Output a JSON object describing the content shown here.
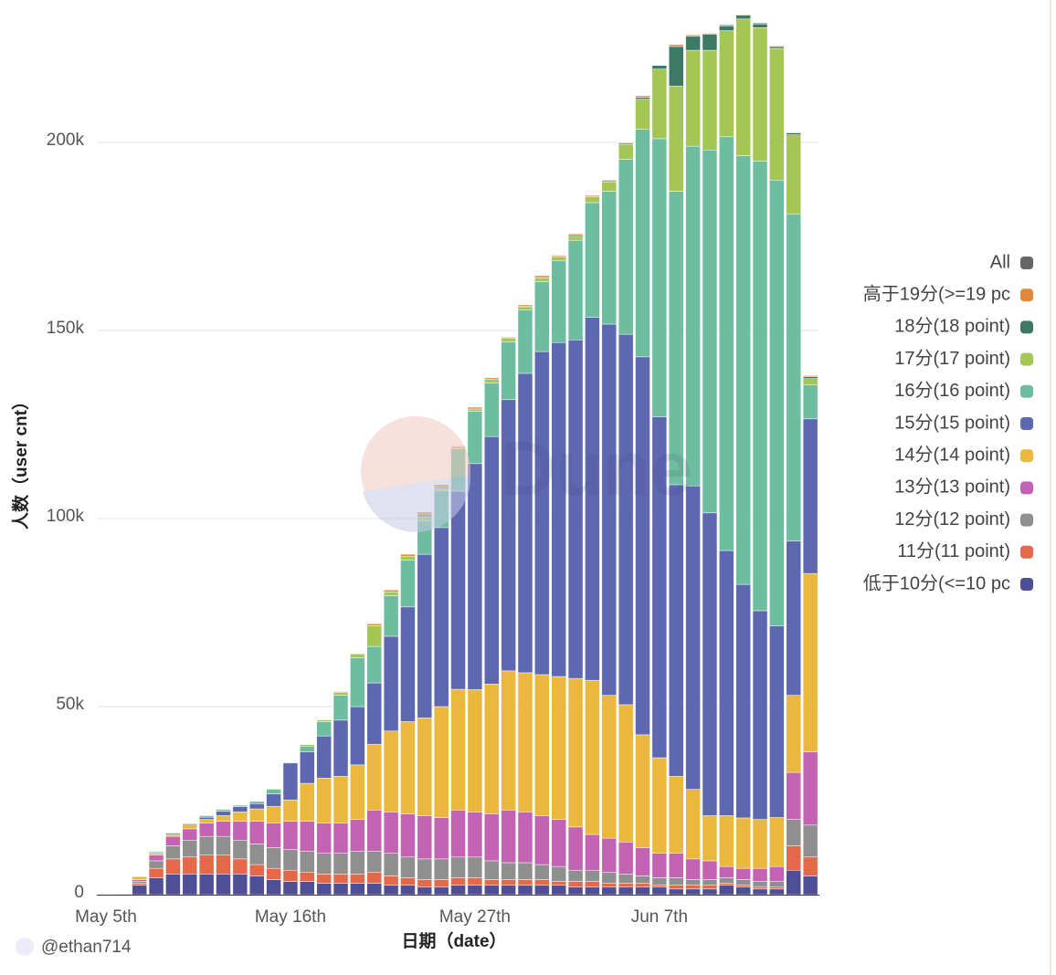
{
  "chart_data": {
    "type": "stacked_bar",
    "watermark": "Dune",
    "credit": "@ethan714",
    "xlabel": "日期（date）",
    "ylabel": "人数（user cnt）",
    "categories": [
      "May 5th",
      null,
      null,
      null,
      null,
      null,
      null,
      null,
      null,
      null,
      null,
      "May 16th",
      null,
      null,
      null,
      null,
      null,
      null,
      null,
      null,
      null,
      null,
      "May 27th",
      null,
      null,
      null,
      null,
      null,
      null,
      null,
      null,
      null,
      null,
      "Jun 7th",
      null,
      null,
      null,
      null,
      null,
      null,
      null,
      null,
      null
    ],
    "ylim": [
      0,
      235000
    ],
    "yticks": [
      {
        "value": 0,
        "label": "0"
      },
      {
        "value": 50000,
        "label": "50k"
      },
      {
        "value": 100000,
        "label": "100k"
      },
      {
        "value": 150000,
        "label": "150k"
      },
      {
        "value": 200000,
        "label": "200k"
      }
    ],
    "grid": true,
    "legend": "right",
    "series": [
      {
        "name": "低于10分(<=10 pc",
        "color": "#4e4f97",
        "values": [
          100,
          150,
          2500,
          4500,
          5500,
          5500,
          5500,
          5500,
          5500,
          5000,
          4000,
          3500,
          3500,
          3000,
          3000,
          3000,
          3000,
          2500,
          2500,
          2000,
          2000,
          2500,
          2500,
          2500,
          2500,
          2500,
          2500,
          2500,
          2000,
          2000,
          2000,
          2000,
          2000,
          2000,
          1500,
          1500,
          1500,
          2500,
          2000,
          1500,
          1500,
          6500,
          5000
        ]
      },
      {
        "name": "11分(11 point)",
        "color": "#e4694a",
        "values": [
          50,
          50,
          500,
          2500,
          4000,
          4500,
          5000,
          5000,
          4000,
          3000,
          3000,
          3000,
          2500,
          2500,
          2500,
          2500,
          3000,
          2500,
          2000,
          2000,
          2000,
          2000,
          2000,
          1500,
          1500,
          1500,
          1500,
          1000,
          1500,
          1500,
          1000,
          1000,
          1000,
          500,
          1000,
          1000,
          1000,
          500,
          500,
          500,
          500,
          6500,
          5000
        ]
      },
      {
        "name": "12分(12 point)",
        "color": "#8f8f8f",
        "values": [
          50,
          50,
          500,
          2000,
          3500,
          4500,
          5000,
          5000,
          5000,
          5500,
          5500,
          5500,
          5500,
          5500,
          5500,
          6000,
          5500,
          6000,
          5500,
          5500,
          5500,
          5500,
          5500,
          5000,
          4500,
          4500,
          4000,
          4000,
          3000,
          3000,
          3000,
          2500,
          2000,
          2000,
          2000,
          1500,
          1500,
          1500,
          1500,
          1500,
          1500,
          7000,
          8500
        ]
      },
      {
        "name": "13分(13 point)",
        "color": "#c463b4",
        "values": [
          50,
          50,
          500,
          1500,
          2500,
          3000,
          3500,
          4000,
          5000,
          6000,
          6500,
          7500,
          8000,
          8000,
          8000,
          8500,
          11000,
          11000,
          11500,
          11500,
          11000,
          12500,
          12000,
          12500,
          14000,
          13500,
          13000,
          12500,
          11500,
          9500,
          9000,
          8500,
          7500,
          6500,
          6500,
          5500,
          5000,
          3000,
          3000,
          3500,
          4000,
          12500,
          19500
        ]
      },
      {
        "name": "14分(14 point)",
        "color": "#e9b83d",
        "values": [
          50,
          50,
          800,
          500,
          500,
          1000,
          1000,
          1500,
          2500,
          3300,
          4500,
          5700,
          10100,
          12000,
          12500,
          14500,
          17500,
          21500,
          24500,
          26000,
          29500,
          32100,
          32500,
          34500,
          37000,
          37000,
          37500,
          38000,
          39500,
          41000,
          38000,
          36500,
          30000,
          25400,
          20500,
          18500,
          12000,
          13500,
          13400,
          13000,
          13000,
          20500,
          47400
        ]
      },
      {
        "name": "15分(15 point)",
        "color": "#5e68b1",
        "values": [
          0,
          0,
          100,
          200,
          300,
          300,
          600,
          1200,
          1400,
          1400,
          3300,
          9800,
          8400,
          11200,
          14900,
          15500,
          16300,
          25200,
          30500,
          43500,
          47600,
          52700,
          60100,
          65800,
          72100,
          79600,
          85900,
          88800,
          90000,
          96500,
          98700,
          98500,
          100500,
          90600,
          77500,
          80700,
          80500,
          70500,
          62100,
          55500,
          51000,
          41000,
          41100
        ]
      },
      {
        "name": "16分(16 point)",
        "color": "#6dbda0",
        "values": [
          0,
          0,
          100,
          300,
          200,
          200,
          400,
          500,
          400,
          600,
          1200,
          200,
          1500,
          3800,
          6600,
          13000,
          9700,
          10800,
          12500,
          9000,
          9900,
          11200,
          13900,
          14200,
          15400,
          16900,
          18600,
          21700,
          26500,
          30500,
          35300,
          46500,
          60500,
          74000,
          78000,
          90300,
          96500,
          110000,
          114000,
          119500,
          118500,
          87000,
          9000
        ]
      },
      {
        "name": "17分(17 point)",
        "color": "#a3c654",
        "values": [
          0,
          0,
          0,
          0,
          0,
          0,
          0,
          100,
          100,
          100,
          200,
          100,
          400,
          500,
          800,
          1000,
          5500,
          1000,
          1000,
          1000,
          500,
          500,
          500,
          700,
          1000,
          800,
          1000,
          1000,
          1000,
          1500,
          2500,
          4000,
          8000,
          18500,
          28000,
          25500,
          26500,
          28200,
          36300,
          35500,
          35000,
          21000,
          1700
        ]
      },
      {
        "name": "18分(18 point)",
        "color": "#3c7a66",
        "values": [
          0,
          0,
          0,
          0,
          0,
          0,
          0,
          0,
          0,
          0,
          0,
          0,
          0,
          0,
          0,
          0,
          0,
          0,
          0,
          500,
          300,
          200,
          300,
          300,
          100,
          200,
          300,
          200,
          300,
          200,
          300,
          300,
          500,
          1000,
          10500,
          3700,
          4300,
          1300,
          1000,
          1000,
          500,
          500,
          500
        ]
      },
      {
        "name": "高于19分(>=19 pc",
        "color": "#e0893a",
        "values": [
          0,
          0,
          0,
          0,
          0,
          0,
          0,
          0,
          0,
          0,
          0,
          0,
          0,
          100,
          200,
          0,
          500,
          500,
          500,
          700,
          700,
          200,
          300,
          400,
          200,
          300,
          300,
          300,
          400,
          300,
          200,
          200,
          400,
          100,
          500,
          400,
          200,
          300,
          200,
          300,
          200,
          200,
          300
        ]
      },
      {
        "name": "All",
        "color": "#666666",
        "values": [
          null,
          null,
          null,
          null,
          null,
          null,
          null,
          null,
          null,
          null,
          null,
          null,
          null,
          null,
          null,
          null,
          null,
          null,
          null,
          null,
          null,
          null,
          null,
          null,
          null,
          null,
          null,
          null,
          null,
          null,
          null,
          null,
          null,
          null,
          null,
          null,
          null,
          null,
          null,
          null,
          null,
          null,
          null
        ]
      }
    ]
  }
}
